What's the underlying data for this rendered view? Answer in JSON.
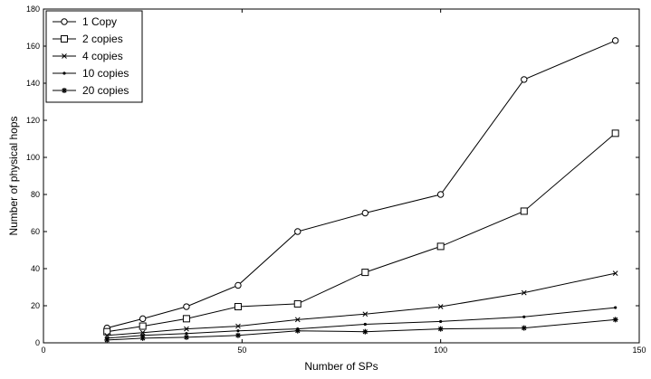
{
  "chart_data": {
    "type": "line",
    "title": "",
    "xlabel": "Number of SPs",
    "ylabel": "Number of physical hops",
    "xlim": [
      0,
      150
    ],
    "ylim": [
      0,
      180
    ],
    "xticks": [
      0,
      50,
      100,
      150
    ],
    "yticks": [
      0,
      20,
      40,
      60,
      80,
      100,
      120,
      140,
      160,
      180
    ],
    "grid": false,
    "legend_position": "top-left",
    "line_color": "#000000",
    "x": [
      16,
      25,
      36,
      49,
      64,
      81,
      100,
      121,
      144
    ],
    "series": [
      {
        "name": "1 Copy",
        "marker": "circle",
        "values": [
          8,
          13,
          19.5,
          31,
          60,
          70,
          80,
          142,
          163
        ]
      },
      {
        "name": "2 copies",
        "marker": "square",
        "values": [
          6,
          9,
          13,
          19.5,
          21,
          38,
          52,
          71,
          113
        ]
      },
      {
        "name": "4 copies",
        "marker": "x",
        "values": [
          4,
          5.5,
          7.5,
          9,
          12.5,
          15.5,
          19.5,
          27,
          37.5
        ]
      },
      {
        "name": "10 copies",
        "marker": "point",
        "values": [
          2.5,
          4,
          5,
          6.5,
          7.5,
          10,
          11.5,
          14,
          19
        ]
      },
      {
        "name": "20 copies",
        "marker": "asterisk",
        "values": [
          1.5,
          2.5,
          3,
          4,
          6.5,
          6,
          7.5,
          8,
          12.5
        ]
      }
    ]
  }
}
